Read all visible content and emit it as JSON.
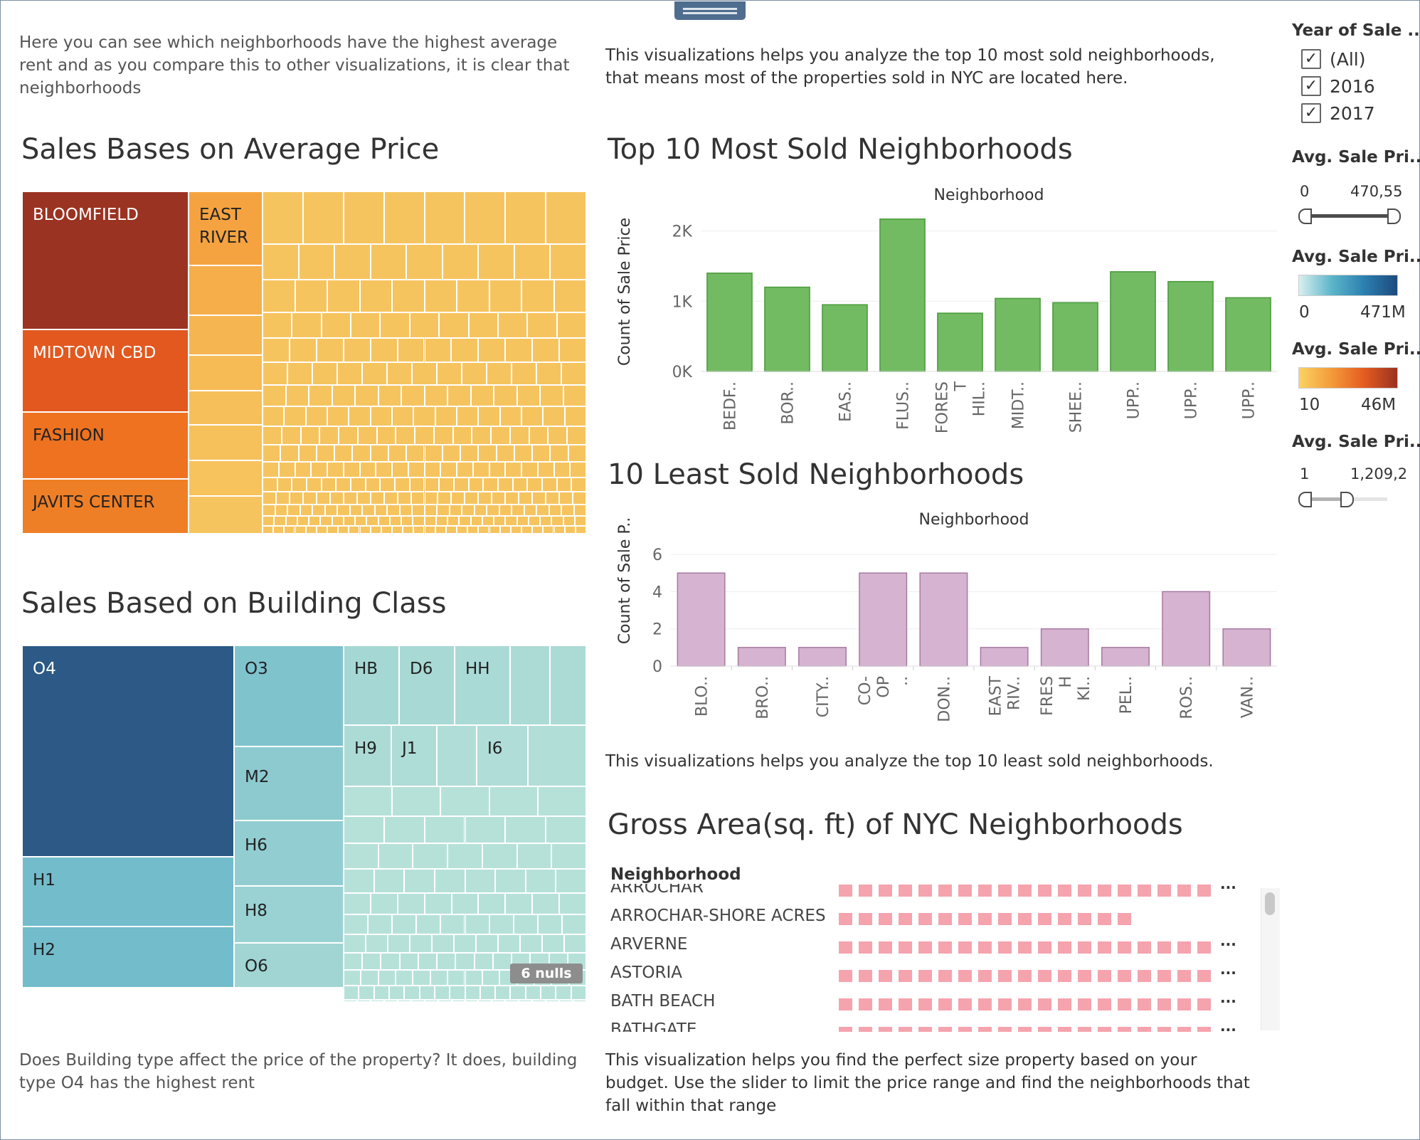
{
  "captions": {
    "rent_intro": "Here you can see which neighborhoods have the highest average rent and as you compare this to other visualizations, it is clear that neighborhoods",
    "top10_intro": "This visualizations helps you analyze the top 10 most sold neighborhoods, that means most of the properties sold in NYC are located here.",
    "least10_intro": "This visualizations helps you analyze the top 10 least sold neighborhoods.",
    "building_question": "Does Building type affect the price of the property? It does, building type O4 has the highest rent",
    "area_help": "This visualization helps you find the perfect size property based on your budget. Use the slider to limit the price range and find the neighborhoods that fall within that range"
  },
  "titles": {
    "avg_price": "Sales Bases on Average Price",
    "building_class": "Sales Based on Building Class",
    "top10": "Top 10 Most Sold Neighborhoods",
    "least10": "10 Least Sold Neighborhoods",
    "gross_area": "Gross Area(sq. ft) of NYC Neighborhoods"
  },
  "treemap_price": {
    "labels": [
      "BLOOMFIELD",
      "EAST RIVER",
      "MIDTOWN CBD",
      "FASHION",
      "JAVITS CENTER"
    ],
    "colors": {
      "bloomfield": "#9b3322",
      "east_river": "#f5a340",
      "midtown": "#e2581f",
      "fashion": "#ee7220",
      "javits": "#ef7f26",
      "rest": "#f6c45e"
    }
  },
  "treemap_building": {
    "labels": [
      "O4",
      "O3",
      "HB",
      "D6",
      "HH",
      "M2",
      "H9",
      "J1",
      "I6",
      "H6",
      "H1",
      "H8",
      "H2",
      "O6"
    ],
    "nulls_badge": "6 nulls",
    "colors": {
      "o4": "#2c5985",
      "h1": "#72bccb",
      "o3": "#7fc3cd",
      "mid": "#97d0d2",
      "light": "#abdcd6",
      "lighter": "#b9e3da"
    }
  },
  "filters": {
    "year_title": "Year of Sale ..",
    "year_options": [
      "(All)",
      "2016",
      "2017"
    ],
    "avg1_title": "Avg. Sale Pri..",
    "avg1_min": "0",
    "avg1_max": "470,55",
    "avg2_title": "Avg. Sale Pri..",
    "avg2_min": "0",
    "avg2_max": "471M",
    "avg3_title": "Avg. Sale Pri..",
    "avg3_min": "10",
    "avg3_max": "46M",
    "avg4_title": "Avg. Sale Pri..",
    "avg4_min": "1",
    "avg4_max": "1,209,2",
    "avg4_fill": 0.45
  },
  "chart_data": [
    {
      "type": "bar",
      "title": "Neighborhood",
      "ylabel": "Count of Sale Price",
      "categories": [
        "BEDF..",
        "BOR..",
        "EAS..",
        "FLUS..",
        "FORES T HIL..",
        "MIDT..",
        "SHEE..",
        "UPP..",
        "UPP..",
        "UPP.."
      ],
      "values": [
        1400,
        1200,
        950,
        2170,
        830,
        1040,
        980,
        1420,
        1280,
        1050
      ],
      "yticks": [
        "0K",
        "1K",
        "2K"
      ],
      "ylim": [
        0,
        2300
      ],
      "color": "#72bb63"
    },
    {
      "type": "bar",
      "title": "Neighborhood",
      "ylabel": "Count of Sale P..",
      "categories": [
        "BLO..",
        "BRO..",
        "CITY..",
        "CO- OP ..",
        "DON..",
        "EAST RIV..",
        "FRES H KI..",
        "PEL..",
        "ROS..",
        "VAN.."
      ],
      "values": [
        5,
        1,
        1,
        5,
        5,
        1,
        2,
        1,
        4,
        2
      ],
      "yticks": [
        "0",
        "2",
        "4",
        "6"
      ],
      "ylim": [
        0,
        6.5
      ],
      "color": "#d6b4d1"
    }
  ],
  "gross_area": {
    "header": "Neighborhood",
    "rows": [
      {
        "name": "ARROCHAR",
        "squares": 19,
        "more": true
      },
      {
        "name": "ARROCHAR-SHORE ACRES",
        "squares": 15,
        "more": false
      },
      {
        "name": "ARVERNE",
        "squares": 19,
        "more": true
      },
      {
        "name": "ASTORIA",
        "squares": 19,
        "more": true
      },
      {
        "name": "BATH BEACH",
        "squares": 19,
        "more": true
      },
      {
        "name": "BATHGATE",
        "squares": 19,
        "more": true
      }
    ],
    "more_glyph": "..."
  }
}
